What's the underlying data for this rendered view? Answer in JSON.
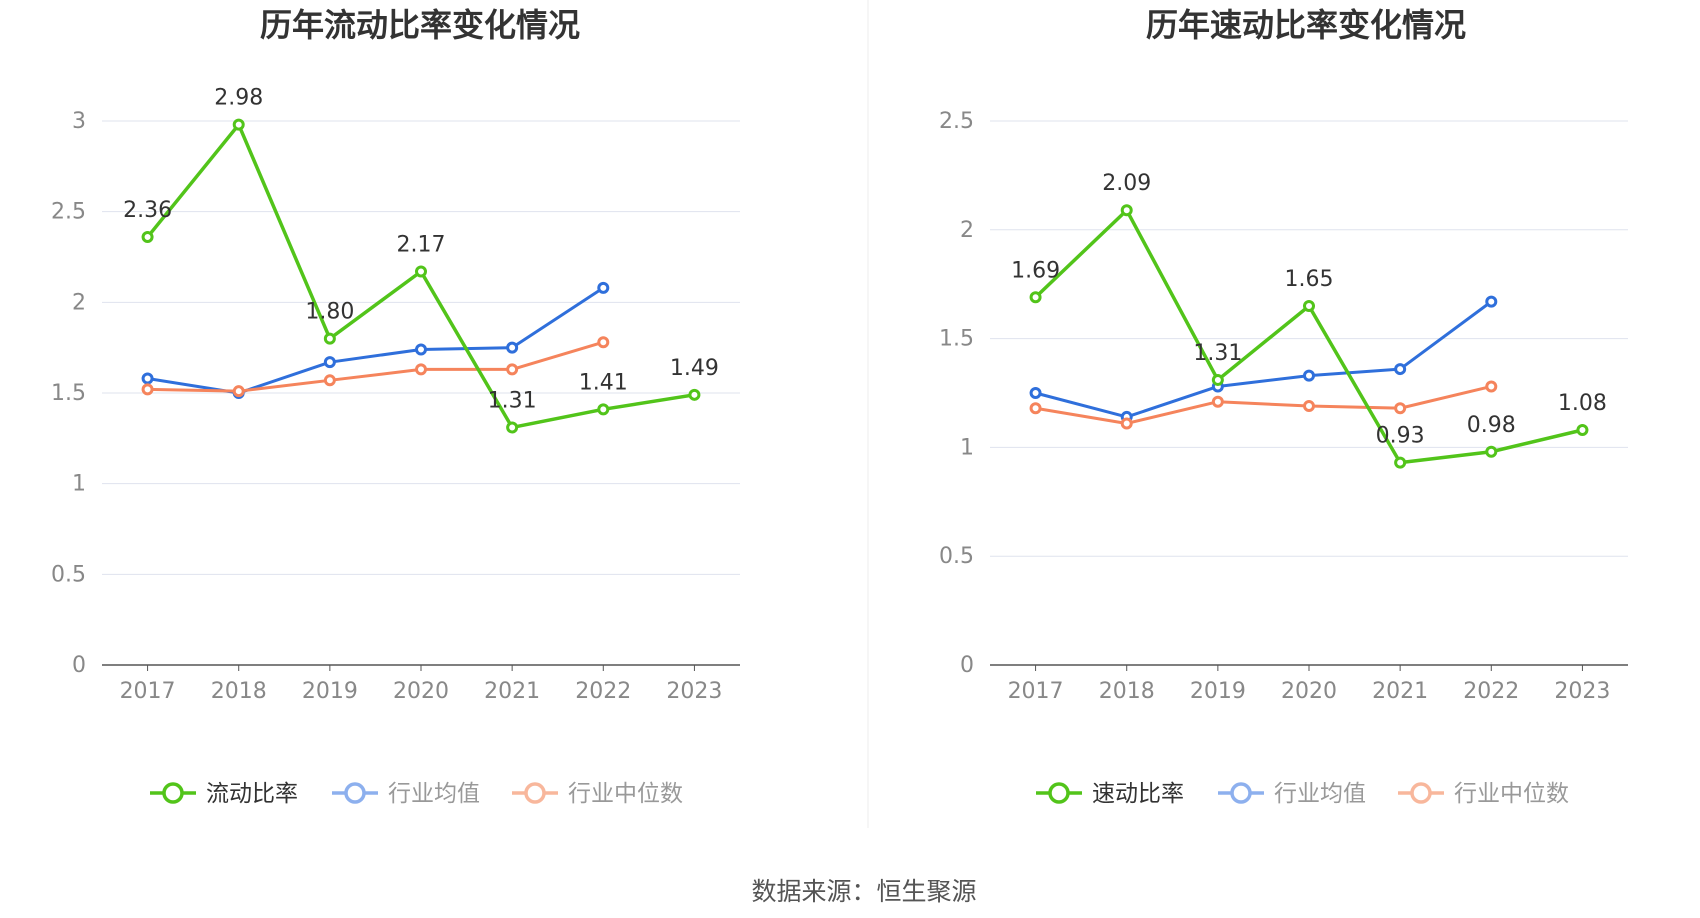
{
  "source": "数据来源：恒生聚源",
  "chart_data": [
    {
      "type": "line",
      "title": "历年流动比率变化情况",
      "categories": [
        "2017",
        "2018",
        "2019",
        "2020",
        "2021",
        "2022",
        "2023"
      ],
      "ylim": [
        0,
        3
      ],
      "yticks": [
        "0",
        "0.5",
        "1",
        "1.5",
        "2",
        "2.5",
        "3"
      ],
      "grid": true,
      "legend_position": "bottom",
      "series": [
        {
          "name": "流动比率",
          "color": "#52c41a",
          "values": [
            2.36,
            2.98,
            1.8,
            2.17,
            1.31,
            1.41,
            1.49
          ],
          "labels": [
            "2.36",
            "2.98",
            "1.80",
            "2.17",
            "1.31",
            "1.41",
            "1.49"
          ]
        },
        {
          "name": "行业均值",
          "color": "#2f6fdb",
          "values": [
            1.58,
            1.5,
            1.67,
            1.74,
            1.75,
            2.08,
            null
          ]
        },
        {
          "name": "行业中位数",
          "color": "#f5845c",
          "values": [
            1.52,
            1.51,
            1.57,
            1.63,
            1.63,
            1.78,
            null
          ]
        }
      ]
    },
    {
      "type": "line",
      "title": "历年速动比率变化情况",
      "categories": [
        "2017",
        "2018",
        "2019",
        "2020",
        "2021",
        "2022",
        "2023"
      ],
      "ylim": [
        0,
        2.5
      ],
      "yticks": [
        "0",
        "0.5",
        "1",
        "1.5",
        "2",
        "2.5"
      ],
      "grid": true,
      "legend_position": "bottom",
      "series": [
        {
          "name": "速动比率",
          "color": "#52c41a",
          "values": [
            1.69,
            2.09,
            1.31,
            1.65,
            0.93,
            0.98,
            1.08
          ],
          "labels": [
            "1.69",
            "2.09",
            "1.31",
            "1.65",
            "0.93",
            "0.98",
            "1.08"
          ]
        },
        {
          "name": "行业均值",
          "color": "#2f6fdb",
          "values": [
            1.25,
            1.14,
            1.28,
            1.33,
            1.36,
            1.67,
            null
          ]
        },
        {
          "name": "行业中位数",
          "color": "#f5845c",
          "values": [
            1.18,
            1.11,
            1.21,
            1.19,
            1.18,
            1.28,
            null
          ]
        }
      ]
    }
  ]
}
